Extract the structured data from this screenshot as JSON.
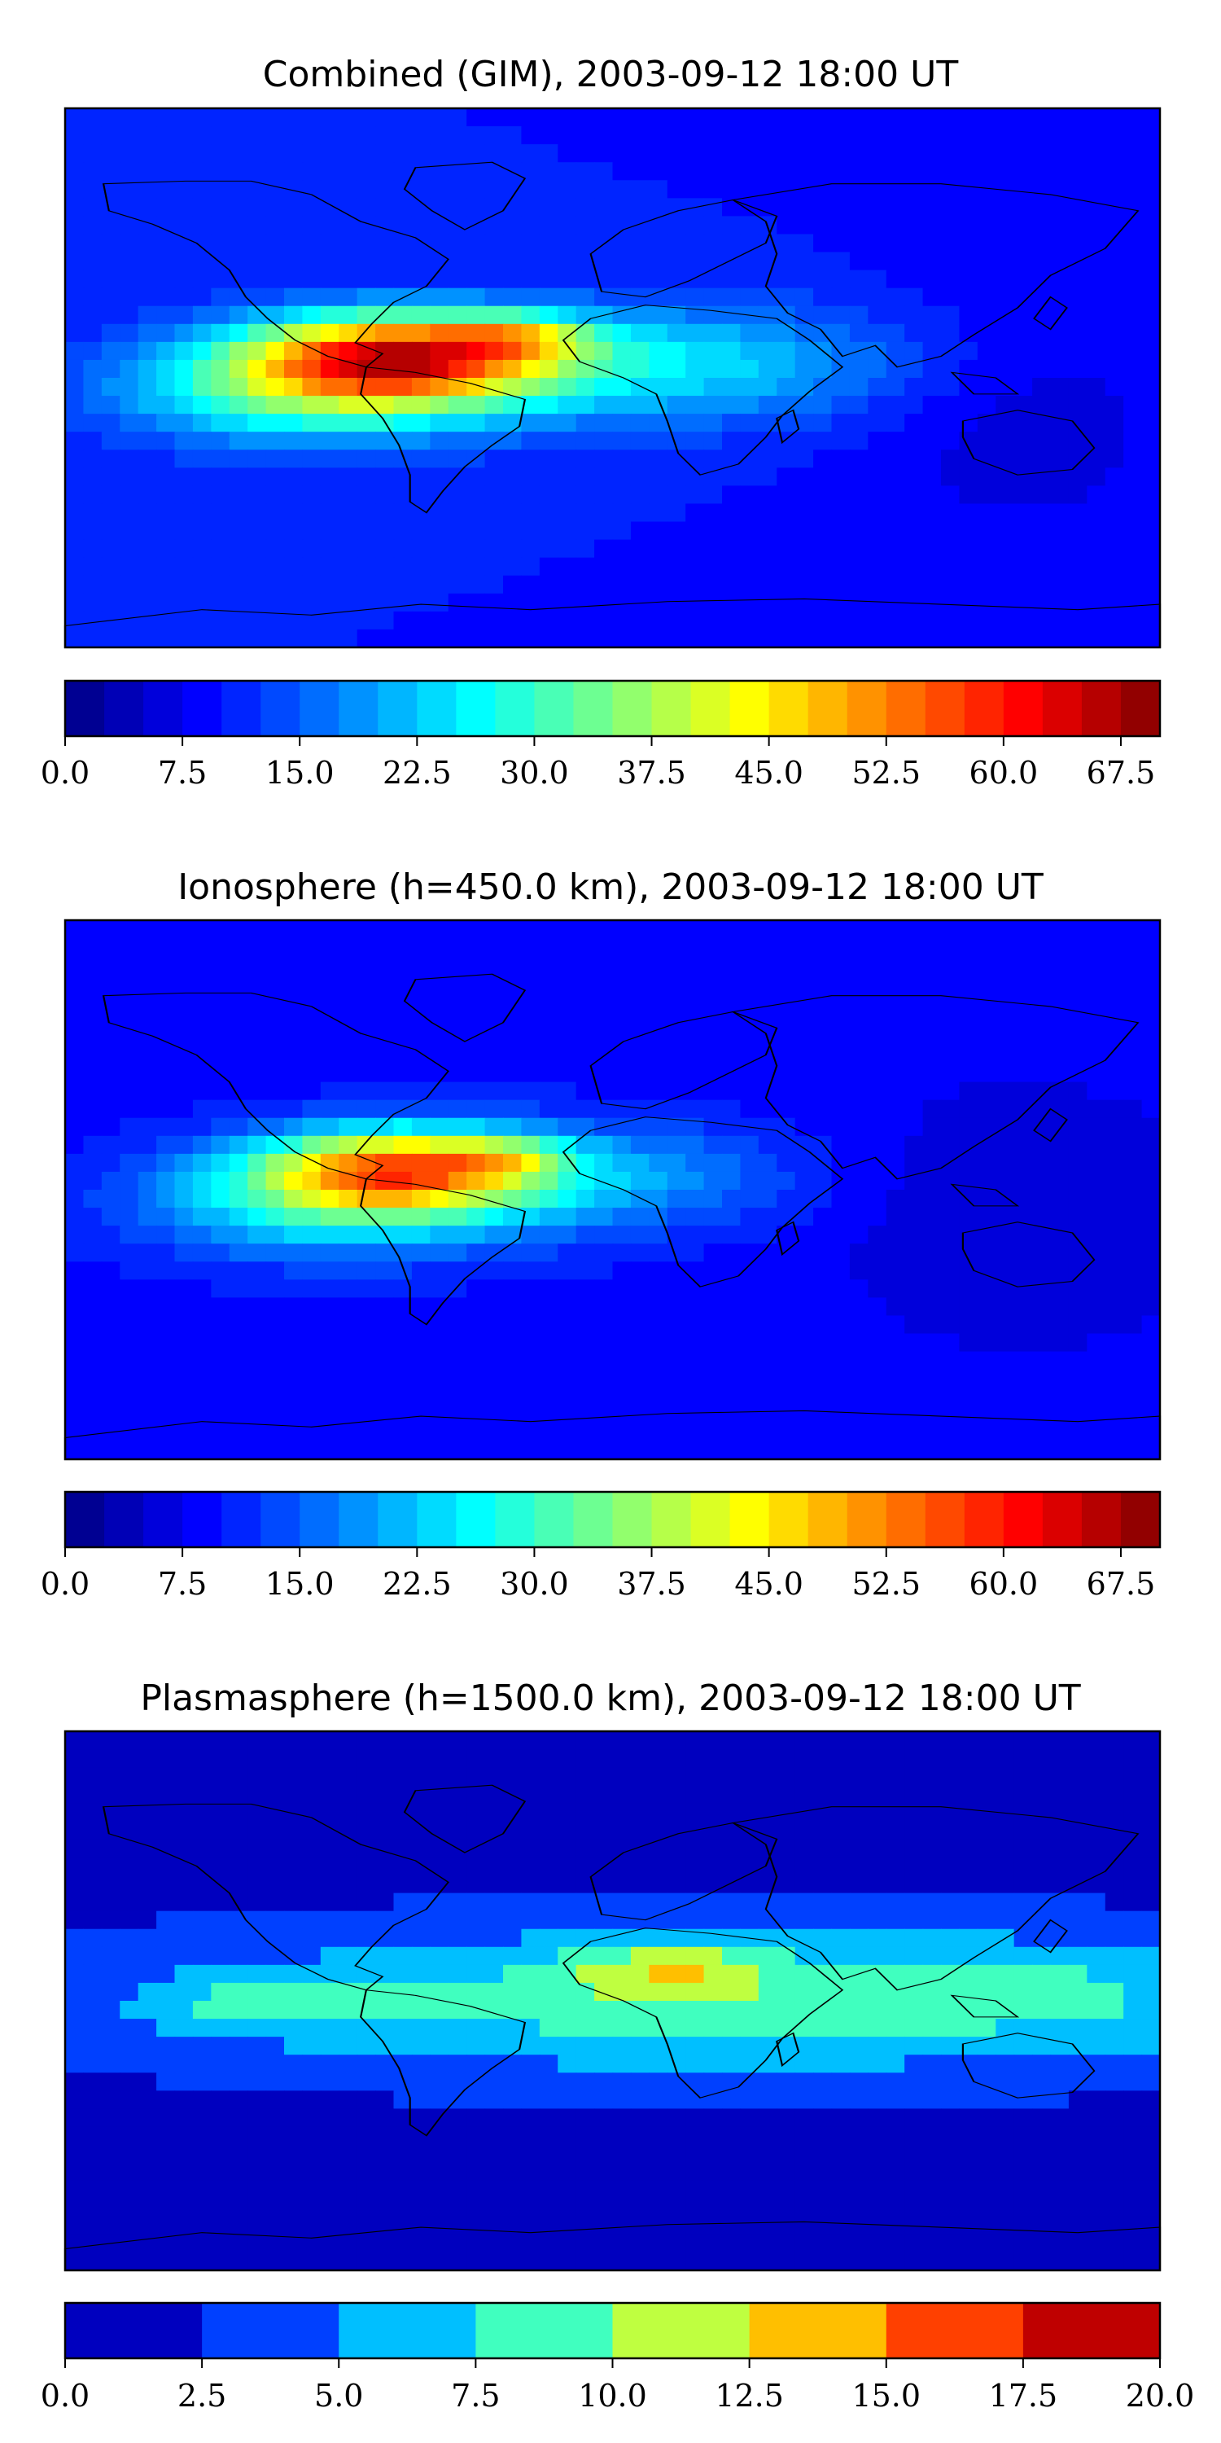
{
  "figure": {
    "background": "#ffffff",
    "land_outline_color": "#000000"
  },
  "chart_data": [
    {
      "type": "heatmap",
      "title": "Combined (GIM), 2003-09-12 18:00 UT",
      "field": "combined",
      "colorbar": {
        "min": 0,
        "max": 70,
        "levels": 28,
        "step": 2.5,
        "tick_labels": [
          "0.0",
          "7.5",
          "15.0",
          "22.5",
          "30.0",
          "37.5",
          "45.0",
          "52.5",
          "60.0",
          "67.5"
        ],
        "tick_values": [
          0,
          7.5,
          15,
          22.5,
          30,
          37.5,
          45,
          52.5,
          60,
          67.5
        ]
      },
      "hotspot_description": "Peak near 60-68 over northern South America and the tropical Atlantic"
    },
    {
      "type": "heatmap",
      "title": "Ionosphere  (h=450.0 km), 2003-09-12 18:00 UT",
      "field": "ionosphere",
      "colorbar": {
        "min": 0,
        "max": 70,
        "levels": 28,
        "step": 2.5,
        "tick_labels": [
          "0.0",
          "7.5",
          "15.0",
          "22.5",
          "30.0",
          "37.5",
          "45.0",
          "52.5",
          "60.0",
          "67.5"
        ],
        "tick_values": [
          0,
          7.5,
          15,
          22.5,
          30,
          37.5,
          45,
          52.5,
          60,
          67.5
        ]
      }
    },
    {
      "type": "heatmap",
      "title": "Plasmasphere (h=1500.0 km), 2003-09-12 18:00 UT",
      "field": "plasmasphere",
      "colorbar": {
        "min": 0,
        "max": 20,
        "levels": 8,
        "step": 2.5,
        "tick_labels": [
          "0.0",
          "2.5",
          "5.0",
          "7.5",
          "10.0",
          "12.5",
          "15.0",
          "17.5",
          "20.0"
        ],
        "tick_values": [
          0,
          2.5,
          5,
          7.5,
          10,
          12.5,
          15,
          17.5,
          20
        ]
      }
    }
  ]
}
